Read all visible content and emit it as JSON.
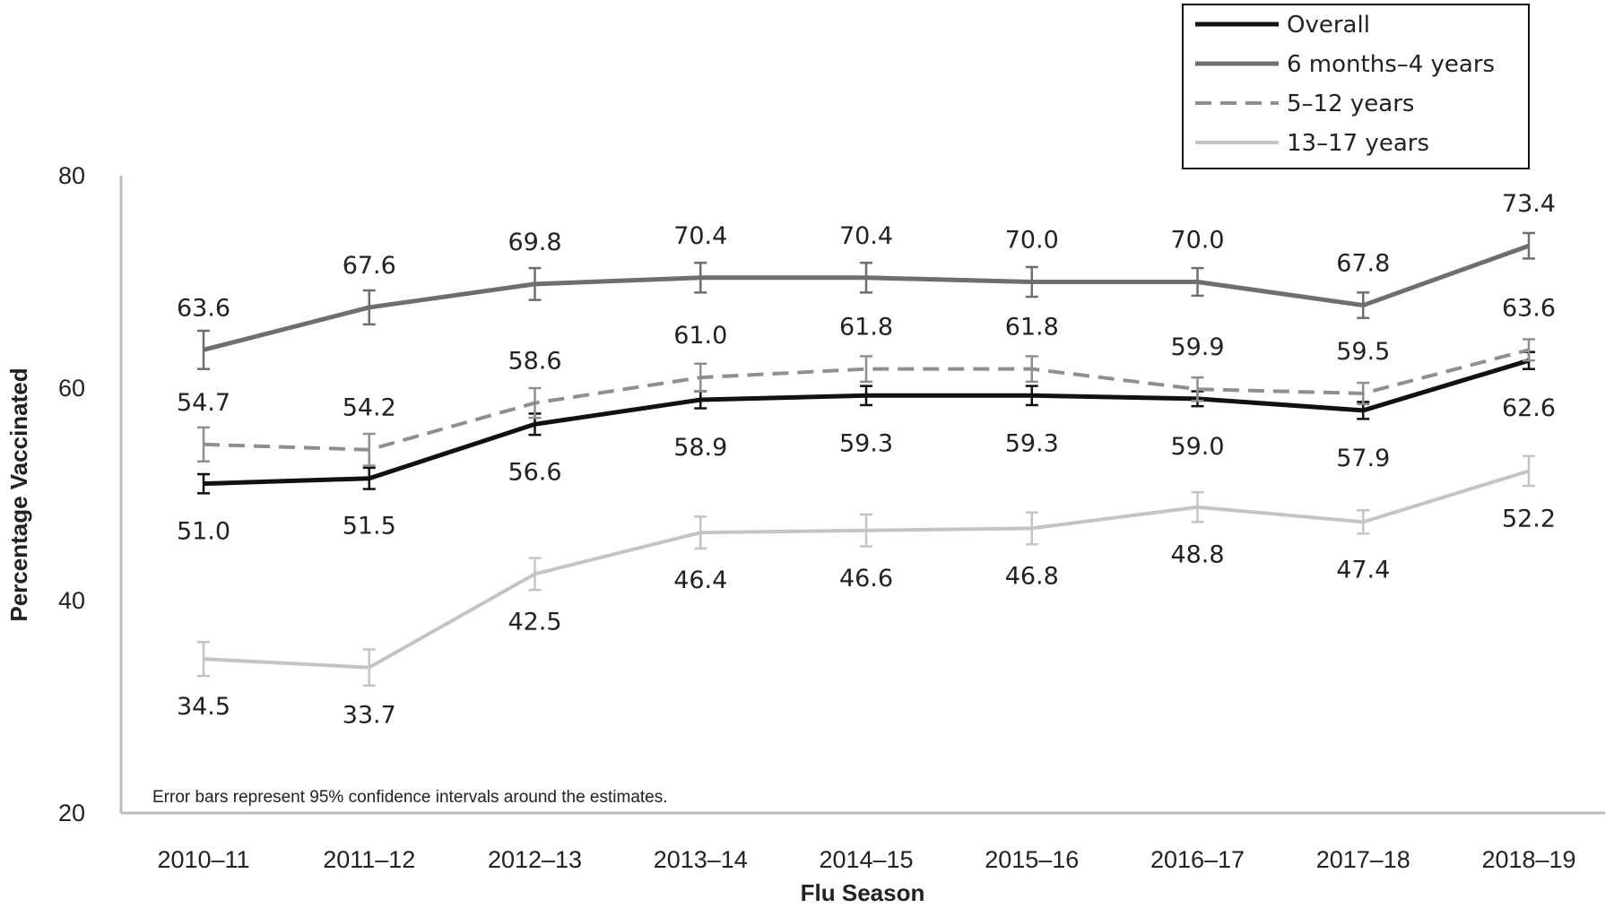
{
  "chart_data": {
    "type": "line",
    "xlabel": "Flu Season",
    "ylabel": "Percentage Vaccinated",
    "ylim": [
      20,
      80
    ],
    "yticks": [
      20,
      40,
      60,
      80
    ],
    "grid": false,
    "legend_position": "top-right",
    "categories": [
      "2010–11",
      "2011–12",
      "2012–13",
      "2013–14",
      "2014–15",
      "2015–16",
      "2016–17",
      "2017–18",
      "2018–19"
    ],
    "note": "Error bars represent 95% confidence intervals around the estimates.",
    "series": [
      {
        "name": "Overall",
        "color": "#111111",
        "dash": "solid",
        "values": [
          51.0,
          51.5,
          56.6,
          58.9,
          59.3,
          59.3,
          59.0,
          57.9,
          62.6
        ],
        "labels": [
          "51.0",
          "51.5",
          "56.6",
          "58.9",
          "59.3",
          "59.3",
          "59.0",
          "57.9",
          "62.6"
        ],
        "ci_halfwidth": [
          0.9,
          1.0,
          1.0,
          0.8,
          0.9,
          0.9,
          0.7,
          0.8,
          0.8
        ],
        "label_side": [
          "below",
          "below",
          "below",
          "below",
          "below",
          "below",
          "below",
          "below",
          "below"
        ]
      },
      {
        "name": "6 months–4 years",
        "color": "#6e6e6e",
        "dash": "solid",
        "values": [
          63.6,
          67.6,
          69.8,
          70.4,
          70.4,
          70.0,
          70.0,
          67.8,
          73.4
        ],
        "labels": [
          "63.6",
          "67.6",
          "69.8",
          "70.4",
          "70.4",
          "70.0",
          "70.0",
          "67.8",
          "73.4"
        ],
        "ci_halfwidth": [
          1.8,
          1.6,
          1.5,
          1.4,
          1.4,
          1.4,
          1.3,
          1.2,
          1.2
        ],
        "label_side": [
          "above",
          "above",
          "above",
          "above",
          "above",
          "above",
          "above",
          "above",
          "above"
        ]
      },
      {
        "name": "5–12 years",
        "color": "#8f8f8f",
        "dash": "dashed",
        "values": [
          54.7,
          54.2,
          58.6,
          61.0,
          61.8,
          61.8,
          59.9,
          59.5,
          63.6
        ],
        "labels": [
          "54.7",
          "54.2",
          "58.6",
          "61.0",
          "61.8",
          "61.8",
          "59.9",
          "59.5",
          "63.6"
        ],
        "ci_halfwidth": [
          1.6,
          1.5,
          1.4,
          1.3,
          1.2,
          1.2,
          1.1,
          1.0,
          1.0
        ],
        "label_side": [
          "above",
          "above",
          "above",
          "above",
          "above",
          "above",
          "above",
          "above",
          "above"
        ]
      },
      {
        "name": "13–17 years",
        "color": "#c4c4c4",
        "dash": "solid",
        "values": [
          34.5,
          33.7,
          42.5,
          46.4,
          46.6,
          46.8,
          48.8,
          47.4,
          52.2
        ],
        "labels": [
          "34.5",
          "33.7",
          "42.5",
          "46.4",
          "46.6",
          "46.8",
          "48.8",
          "47.4",
          "52.2"
        ],
        "ci_halfwidth": [
          1.6,
          1.7,
          1.5,
          1.5,
          1.5,
          1.5,
          1.4,
          1.1,
          1.4
        ],
        "label_side": [
          "below",
          "below",
          "below",
          "below",
          "below",
          "below",
          "below",
          "below",
          "below"
        ]
      }
    ]
  }
}
